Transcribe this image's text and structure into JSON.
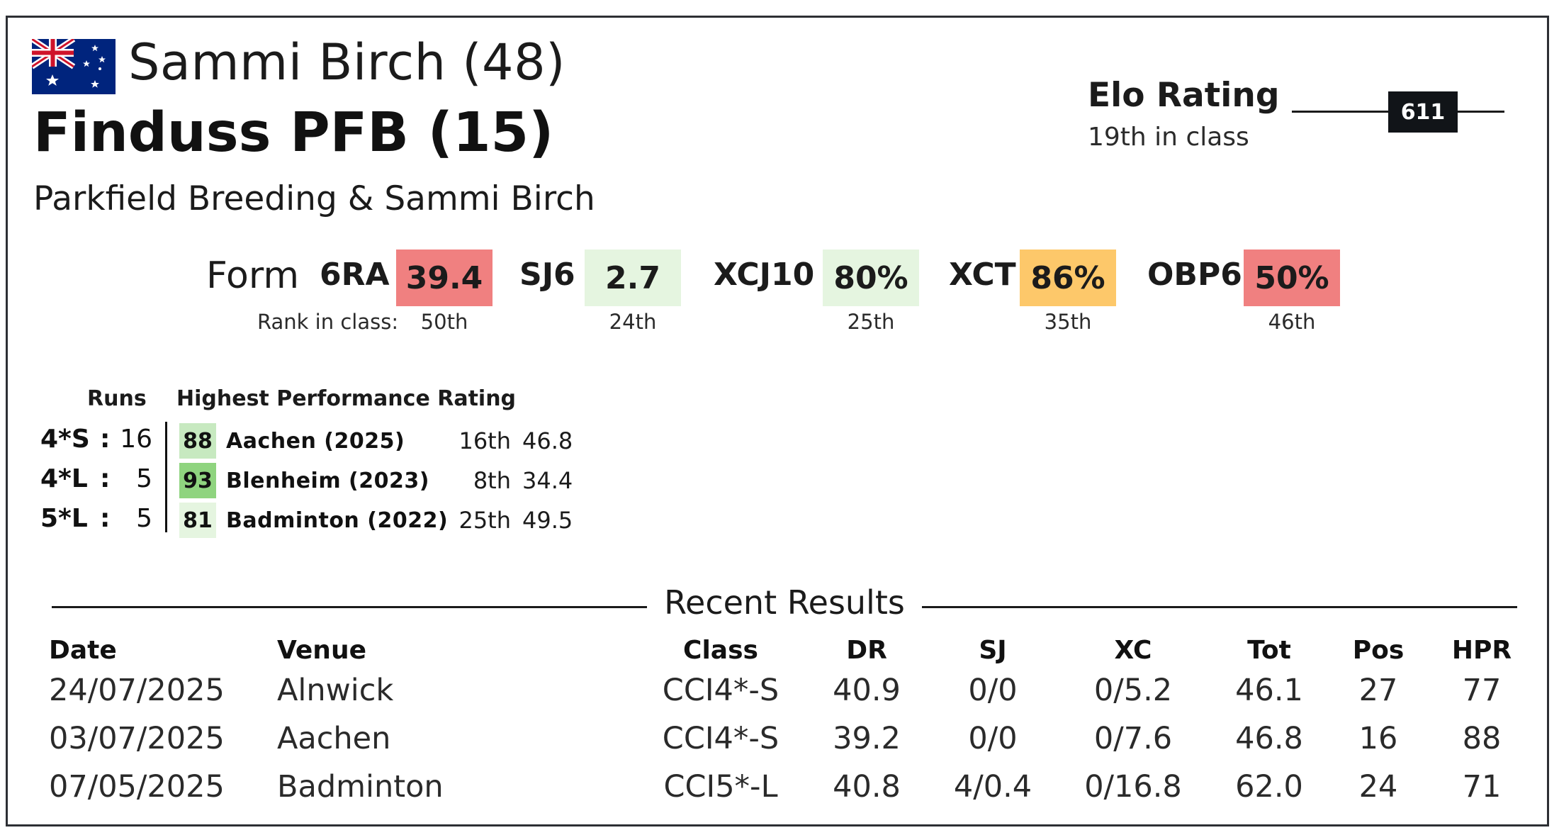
{
  "header": {
    "flag": "australia-flag",
    "rider": "Sammi Birch (48)",
    "horse": "Finduss PFB (15)",
    "owners": "Parkfield Breeding & Sammi Birch"
  },
  "elo": {
    "title": "Elo Rating",
    "subtitle": "19th in class",
    "value": "611"
  },
  "form": {
    "label": "Form",
    "rank_caption": "Rank in class:",
    "metrics": [
      {
        "label": "6RA",
        "value": "39.4",
        "rank": "50th",
        "color": "#f08080"
      },
      {
        "label": "SJ6",
        "value": "2.7",
        "rank": "24th",
        "color": "#e5f5e0"
      },
      {
        "label": "XCJ10",
        "value": "80%",
        "rank": "25th",
        "color": "#e5f5e0"
      },
      {
        "label": "XCT",
        "value": "86%",
        "rank": "35th",
        "color": "#fdc86a"
      },
      {
        "label": "OBP6",
        "value": "50%",
        "rank": "46th",
        "color": "#f08080"
      }
    ]
  },
  "runs": {
    "header_runs": "Runs",
    "header_hpr": "Highest Performance Rating",
    "rows": [
      {
        "level": "4*S",
        "colon": ":",
        "count": "16",
        "hpr": "88",
        "event": "Aachen (2025)",
        "pos": "16th",
        "score": "46.8",
        "color": "#c7e9c0"
      },
      {
        "level": "4*L",
        "colon": ":",
        "count": "5",
        "hpr": "93",
        "event": "Blenheim (2023)",
        "pos": "8th",
        "score": "34.4",
        "color": "#8fd47f"
      },
      {
        "level": "5*L",
        "colon": ":",
        "count": "5",
        "hpr": "81",
        "event": "Badminton (2022)",
        "pos": "25th",
        "score": "49.5",
        "color": "#e5f5e0"
      }
    ]
  },
  "recent": {
    "title": "Recent Results",
    "columns": [
      "Date",
      "Venue",
      "Class",
      "DR",
      "SJ",
      "XC",
      "Tot",
      "Pos",
      "HPR"
    ],
    "rows": [
      [
        "24/07/2025",
        "Alnwick",
        "CCI4*-S",
        "40.9",
        "0/0",
        "0/5.2",
        "46.1",
        "27",
        "77"
      ],
      [
        "03/07/2025",
        "Aachen",
        "CCI4*-S",
        "39.2",
        "0/0",
        "0/7.6",
        "46.8",
        "16",
        "88"
      ],
      [
        "07/05/2025",
        "Badminton",
        "CCI5*-L",
        "40.8",
        "4/0.4",
        "0/16.8",
        "62.0",
        "24",
        "71"
      ]
    ]
  }
}
